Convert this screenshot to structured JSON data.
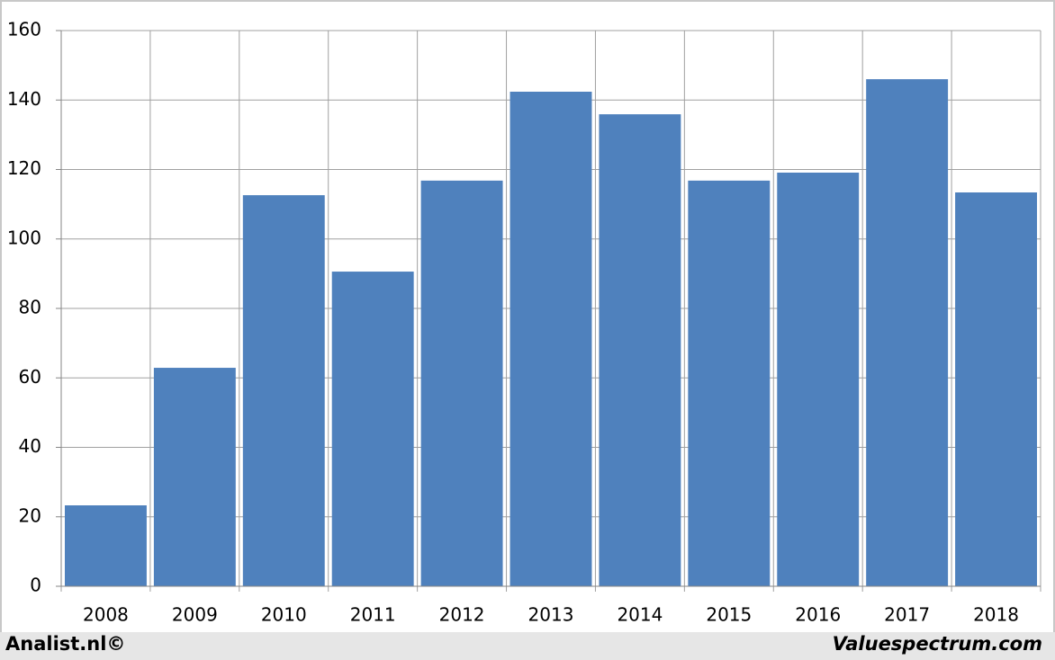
{
  "chart_data": {
    "type": "bar",
    "categories": [
      "2008",
      "2009",
      "2010",
      "2011",
      "2012",
      "2013",
      "2014",
      "2015",
      "2016",
      "2017",
      "2018"
    ],
    "values": [
      23.3,
      62.9,
      112.6,
      90.6,
      116.8,
      142.4,
      135.9,
      116.8,
      119.1,
      146.0,
      113.4
    ],
    "color": "#4f81bd",
    "ylim": [
      0,
      160
    ],
    "yticks": [
      0,
      20,
      40,
      60,
      80,
      100,
      120,
      140,
      160
    ],
    "grid": true,
    "footer_left": "Analist.nl©",
    "footer_right": "Valuespectrum.com"
  }
}
